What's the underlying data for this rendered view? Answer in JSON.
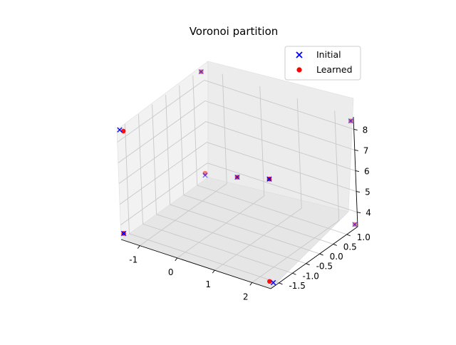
{
  "chart_data": {
    "type": "scatter",
    "projection": "3d",
    "title": "Voronoi partition",
    "xlabel": "",
    "ylabel": "",
    "zlabel": "",
    "xlim": [
      -1.5,
      2.5
    ],
    "ylim": [
      -1.8,
      1.4
    ],
    "zlim": [
      3.3,
      8.6
    ],
    "x_ticks": [
      "-1",
      "0",
      "1",
      "2"
    ],
    "y_ticks": [
      "-1.5",
      "-1.0",
      "-0.5",
      "0.0",
      "0.5",
      "1.0"
    ],
    "z_ticks": [
      "4",
      "5",
      "6",
      "7",
      "8"
    ],
    "grid": true,
    "legend_position": "top-right",
    "series": [
      {
        "name": "Initial",
        "marker": "x",
        "color": "#0000ff",
        "points": [
          {
            "x": -1.5,
            "y": 1.3,
            "z": 8.5
          },
          {
            "x": 2.5,
            "y": 1.3,
            "z": 8.5
          },
          {
            "x": -1.5,
            "y": -1.7,
            "z": 8.5
          },
          {
            "x": 2.5,
            "y": -1.7,
            "z": 8.5
          },
          {
            "x": -1.5,
            "y": 1.3,
            "z": 3.5
          },
          {
            "x": 2.5,
            "y": 1.3,
            "z": 3.5
          },
          {
            "x": -1.5,
            "y": -1.7,
            "z": 3.5
          },
          {
            "x": 2.5,
            "y": -1.7,
            "z": 3.5
          },
          {
            "x": 0.5,
            "y": -0.2,
            "z": 6.0
          }
        ]
      },
      {
        "name": "Learned",
        "marker": "o",
        "color": "#ff0000",
        "points": [
          {
            "x": -1.5,
            "y": 1.3,
            "z": 8.5
          },
          {
            "x": 2.5,
            "y": 1.3,
            "z": 8.5
          },
          {
            "x": -1.4,
            "y": -1.7,
            "z": 8.5
          },
          {
            "x": 2.5,
            "y": -1.7,
            "z": 8.5
          },
          {
            "x": -1.5,
            "y": 1.3,
            "z": 3.6
          },
          {
            "x": 2.5,
            "y": 1.3,
            "z": 3.5
          },
          {
            "x": -1.5,
            "y": -1.7,
            "z": 3.5
          },
          {
            "x": 2.4,
            "y": -1.7,
            "z": 3.5
          },
          {
            "x": 0.5,
            "y": -0.2,
            "z": 6.0
          }
        ]
      }
    ]
  }
}
